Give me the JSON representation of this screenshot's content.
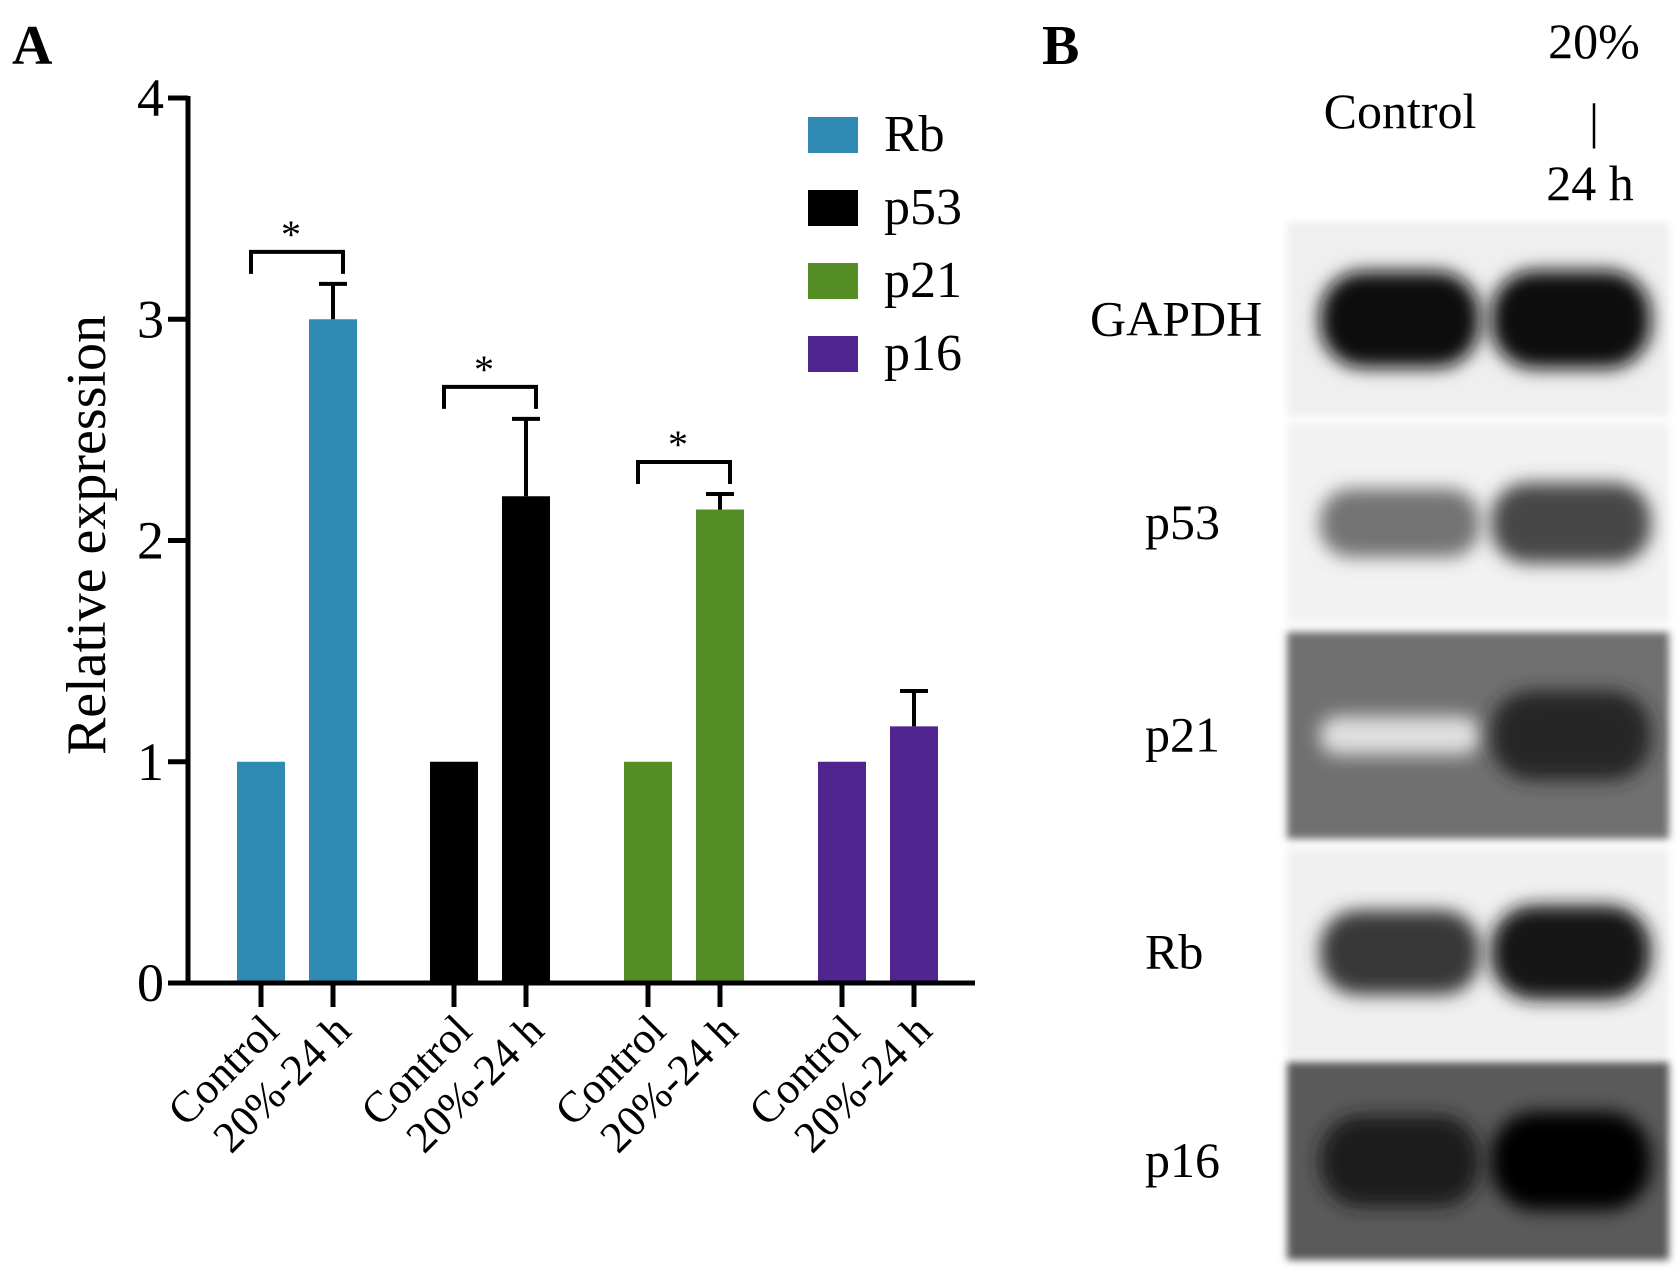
{
  "panels": {
    "a_label": "A",
    "b_label": "B"
  },
  "chart_data": {
    "type": "bar",
    "title": "",
    "xlabel": "",
    "ylabel": "Relative expression",
    "ylim": [
      0,
      4
    ],
    "yticks": [
      "0",
      "1",
      "2",
      "3",
      "4"
    ],
    "grid": false,
    "legend_placement": "top-right",
    "categories": [
      "Control",
      "20%-24 h"
    ],
    "tick_labels": [
      "Control",
      "20%-24 h",
      "Control",
      "20%-24 h",
      "Control",
      "20%-24 h",
      "Control",
      "20%-24 h"
    ],
    "series": [
      {
        "name": "Rb",
        "color": "#2e8ab2",
        "values": [
          1.0,
          3.0
        ],
        "errors": [
          0,
          0.16
        ],
        "significance": "*"
      },
      {
        "name": "p53",
        "color": "#000000",
        "values": [
          1.0,
          2.2
        ],
        "errors": [
          0,
          0.35
        ],
        "significance": "*"
      },
      {
        "name": "p21",
        "color": "#548e25",
        "values": [
          1.0,
          2.14
        ],
        "errors": [
          0,
          0.07
        ],
        "significance": "*"
      },
      {
        "name": "p16",
        "color": "#51258f",
        "values": [
          1.0,
          1.16
        ],
        "errors": [
          0,
          0.16
        ],
        "significance": ""
      }
    ]
  },
  "blot": {
    "lanes": [
      "Control",
      "20%",
      "|",
      "24 h"
    ],
    "rows": [
      {
        "label": "GAPDH",
        "control_intensity": 0.95,
        "treated_intensity": 0.97,
        "background": "#efefef"
      },
      {
        "label": "p53",
        "control_intensity": 0.55,
        "treated_intensity": 0.72,
        "background": "#f2f2f2"
      },
      {
        "label": "p21",
        "control_intensity": 0.12,
        "treated_intensity": 0.85,
        "background": "#6f6f6f"
      },
      {
        "label": "Rb",
        "control_intensity": 0.78,
        "treated_intensity": 0.92,
        "background": "#f0f0f0"
      },
      {
        "label": "p16",
        "control_intensity": 0.88,
        "treated_intensity": 0.98,
        "background": "#5a5a5a"
      }
    ]
  }
}
